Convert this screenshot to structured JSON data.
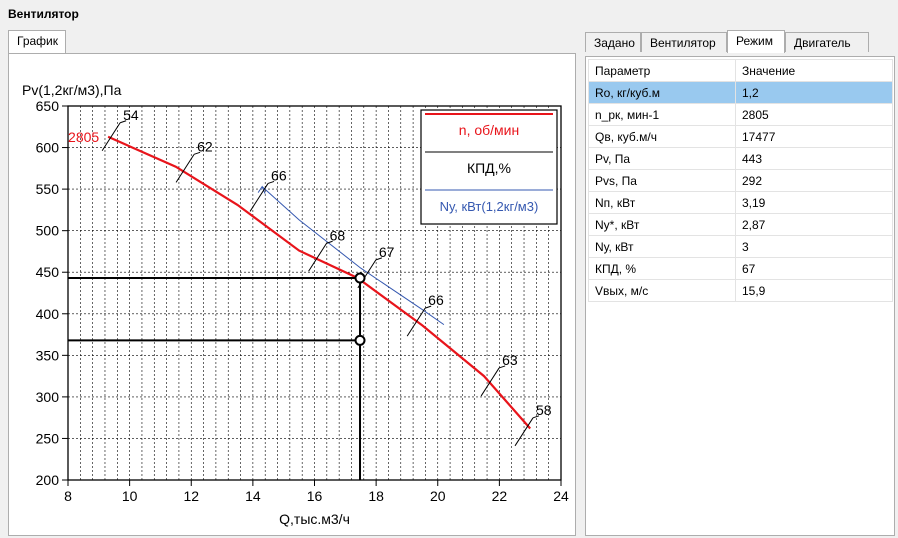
{
  "window": {
    "title": "Вентилятор"
  },
  "left_tabs": [
    "График"
  ],
  "right_tabs": [
    "Задано",
    "Вентилятор",
    "Режим",
    "Двигатель"
  ],
  "active_right_tab": "Режим",
  "params": {
    "headers": [
      "Параметр",
      "Значение"
    ],
    "rows": [
      [
        "Ro, кг/куб.м",
        "1,2"
      ],
      [
        "n_рк, мин-1",
        "2805"
      ],
      [
        "Qв, куб.м/ч",
        "17477"
      ],
      [
        "Pv, Па",
        "443"
      ],
      [
        "Pvs, Па",
        "292"
      ],
      [
        "Nп, кВт",
        "3,19"
      ],
      [
        "Nу*, кВт",
        "2,87"
      ],
      [
        "Nу, кВт",
        "3"
      ],
      [
        "КПД, %",
        "67"
      ],
      [
        "Vвых, м/с",
        "15,9"
      ]
    ],
    "selected_row": 0
  },
  "chart_data": {
    "type": "line",
    "ylabel": "Pv(1,2кг/м3),Па",
    "xlabel": "Q,тыс.м3/ч",
    "xlim": [
      8,
      24
    ],
    "ylim": [
      200,
      650
    ],
    "xticks": [
      "8",
      "10",
      "12",
      "14",
      "16",
      "18",
      "20",
      "22",
      "24"
    ],
    "yticks": [
      "200",
      "250",
      "300",
      "350",
      "400",
      "450",
      "500",
      "550",
      "600",
      "650"
    ],
    "grid": "minor-x",
    "legend_position": "top-right",
    "legend": [
      "n, об/мин",
      "КПД,%",
      "Nу, кВт(1,2кг/м3)"
    ],
    "series": [
      {
        "name": "n, об/мин",
        "color": "#e8141b",
        "label": "2805",
        "x": [
          9.3,
          11.5,
          13.5,
          15.5,
          17.4,
          19.5,
          21.5,
          23.0
        ],
        "y": [
          613,
          577,
          531,
          476,
          443,
          386,
          325,
          262
        ]
      },
      {
        "name": "Nу, кВт(1,2кг/м3)",
        "color": "#3558b0",
        "x": [
          14.3,
          15.5,
          17.5,
          19.5,
          20.2
        ],
        "y": [
          553,
          513,
          455,
          405,
          387
        ]
      }
    ],
    "efficiency_marks": [
      {
        "label": "54",
        "x": 9.4,
        "y": 613
      },
      {
        "label": "62",
        "x": 11.8,
        "y": 575
      },
      {
        "label": "66",
        "x": 14.2,
        "y": 540
      },
      {
        "label": "68",
        "x": 16.1,
        "y": 468
      },
      {
        "label": "67",
        "x": 17.7,
        "y": 448
      },
      {
        "label": "66",
        "x": 19.3,
        "y": 390
      },
      {
        "label": "63",
        "x": 21.7,
        "y": 318
      },
      {
        "label": "58",
        "x": 22.8,
        "y": 258
      }
    ],
    "operating_point": {
      "x": 17.477,
      "y": 443
    },
    "static_point": {
      "x": 17.477,
      "y": 368
    }
  }
}
